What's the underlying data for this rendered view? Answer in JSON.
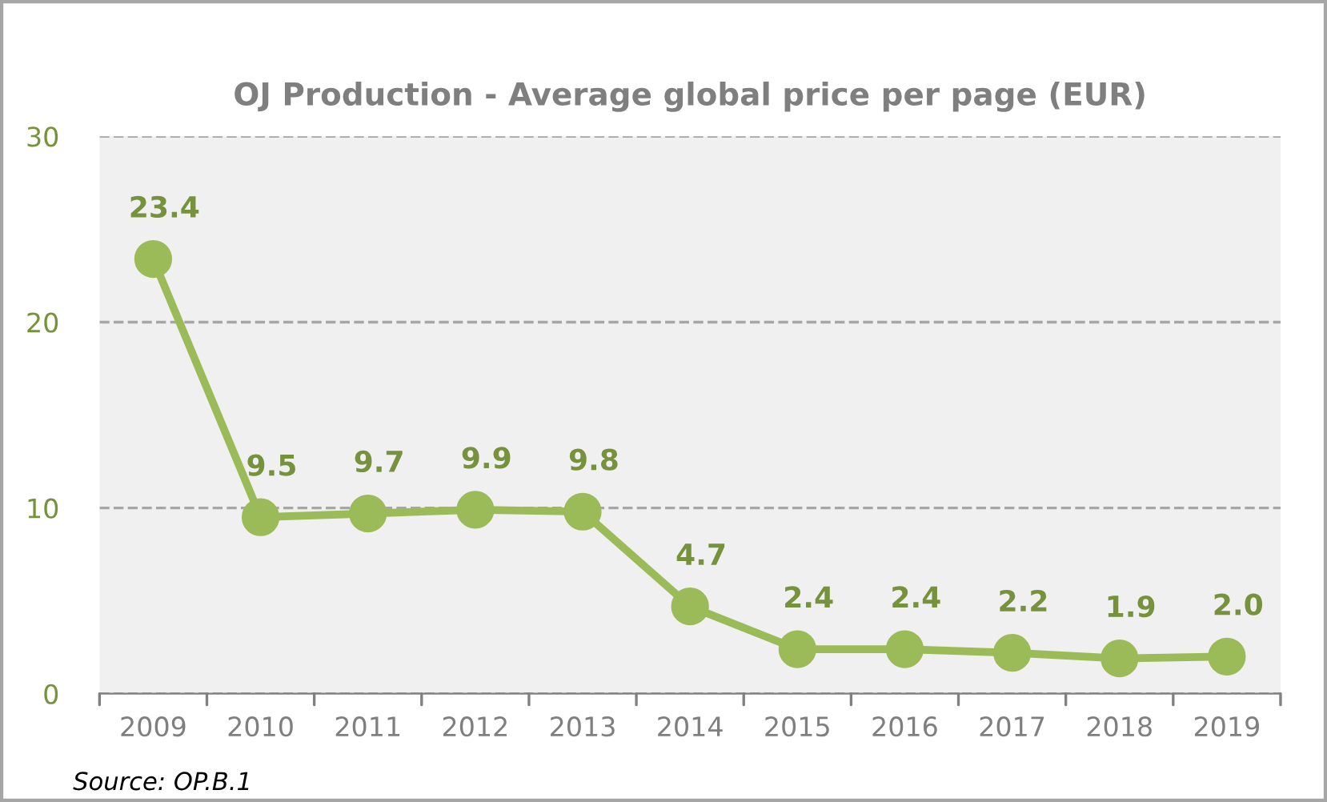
{
  "chart_data": {
    "type": "line",
    "title": "OJ Production - Average global price per page (EUR)",
    "categories": [
      "2009",
      "2010",
      "2011",
      "2012",
      "2013",
      "2014",
      "2015",
      "2016",
      "2017",
      "2018",
      "2019"
    ],
    "series": [
      {
        "color": "#9bbb59",
        "values": [
          23.4,
          9.5,
          9.7,
          9.9,
          9.8,
          4.7,
          2.4,
          2.4,
          2.2,
          1.9,
          2.0
        ]
      }
    ],
    "value_labels": [
      "23.4",
      "9.5",
      "9.7",
      "9.9",
      "9.8",
      "4.7",
      "2.4",
      "2.4",
      "2.2",
      "1.9",
      "2.0"
    ],
    "ylim": [
      0,
      30
    ],
    "yticks": [
      0,
      10,
      20,
      30
    ],
    "grid": "y",
    "marker": "circle",
    "line_style": "solid",
    "annotations": [
      "Source: OP.B.1"
    ]
  }
}
